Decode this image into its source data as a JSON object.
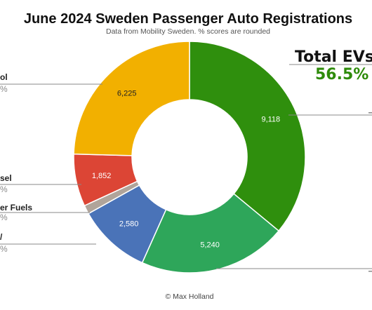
{
  "title": "June 2024 Sweden Passenger Auto Registrations",
  "subtitle": "Data from Mobility Sweden. % scores are rounded",
  "footer": "© Max Holland",
  "callout": {
    "label": "Total EVs",
    "value": "56.5%",
    "value_color": "#2e8b0a"
  },
  "side_labels": [
    {
      "label": "ol",
      "pct": "%"
    },
    {
      "label": "sel",
      "pct": "%"
    },
    {
      "label": "er Fuels",
      "pct": "%"
    },
    {
      "label": "/",
      "pct": "%"
    }
  ],
  "chart_data": {
    "type": "pie",
    "donut": true,
    "title": "June 2024 Sweden Passenger Auto Registrations",
    "subtitle": "Data from Mobility Sweden. % scores are rounded",
    "start_direction": "top",
    "direction": "clockwise",
    "slices": [
      {
        "value": 9118,
        "label": "9,118",
        "color": "#2f8f0d",
        "label_color": "#ffffff"
      },
      {
        "value": 5240,
        "label": "5,240",
        "color": "#2ea65a",
        "label_color": "#ffffff"
      },
      {
        "value": 2580,
        "label": "2,580",
        "color": "#4a73b8",
        "label_color": "#ffffff"
      },
      {
        "value": 310,
        "label": "",
        "color": "#b0a49a",
        "label_color": "#ffffff"
      },
      {
        "value": 1852,
        "label": "1,852",
        "color": "#dc4535",
        "label_color": "#ffffff"
      },
      {
        "value": 6225,
        "label": "6,225",
        "color": "#f2b000",
        "label_color": "#222222"
      }
    ]
  }
}
